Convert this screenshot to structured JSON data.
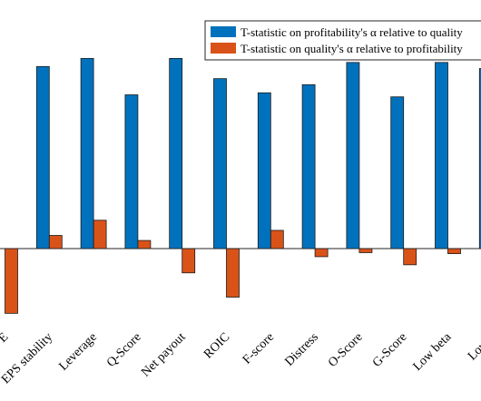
{
  "chart_data": {
    "type": "bar",
    "categories": [
      "E",
      "EPS stability",
      "Leverage",
      "Q-Score",
      "Net payout",
      "ROIC",
      "F-score",
      "Distress",
      "O-Score",
      "G-Score",
      "Low beta",
      "Low v"
    ],
    "series": [
      {
        "name": "T-statistic on profitability's α relative to quality",
        "color": "#0072BD",
        "values": [
          null,
          9.0,
          9.4,
          7.6,
          9.4,
          8.4,
          7.7,
          8.1,
          9.2,
          7.5,
          9.2,
          8.9
        ]
      },
      {
        "name": "T-statistic on quality's α relative to profitability",
        "color": "#D95319",
        "values": [
          -3.2,
          0.65,
          1.4,
          0.4,
          -1.2,
          -2.4,
          0.9,
          -0.4,
          -0.2,
          -0.8,
          -0.25,
          null
        ]
      }
    ],
    "ylim": [
      -4,
      12.4
    ],
    "grid": false,
    "legend_position": "top-right",
    "xlabel": "",
    "ylabel": "",
    "title": ""
  }
}
